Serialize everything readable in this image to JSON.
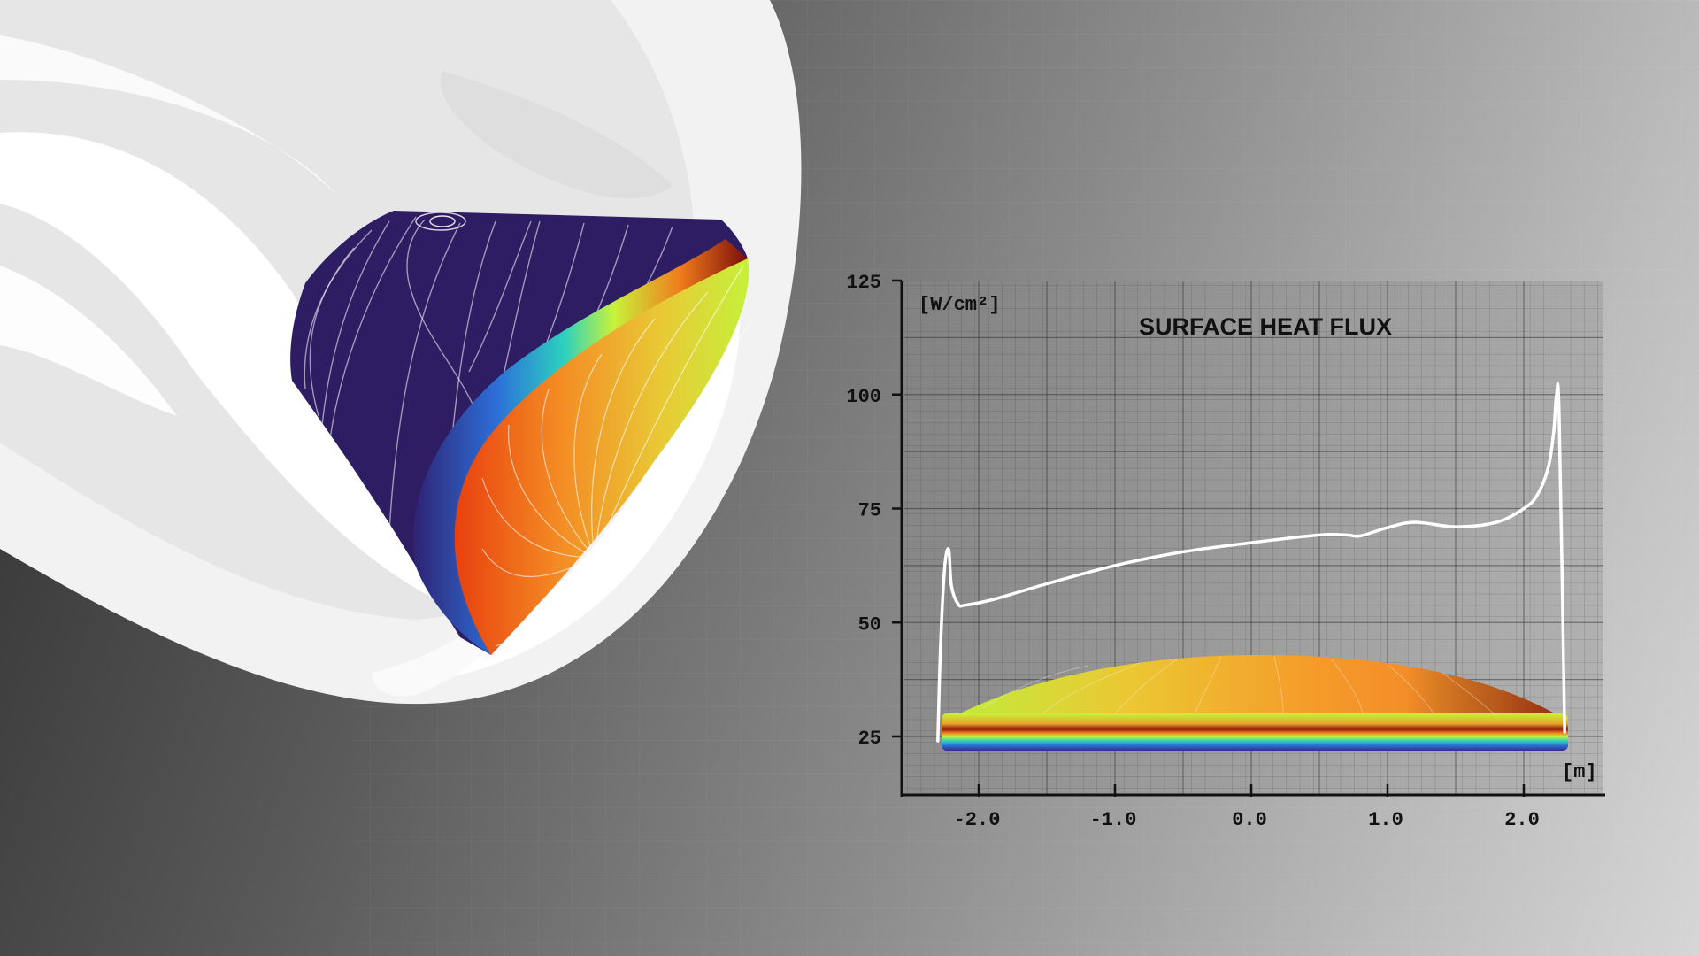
{
  "chart_data": {
    "type": "line",
    "title": "SURFACE HEAT FLUX",
    "xlabel": "[m]",
    "ylabel": "[W/cm²]",
    "xticks": [
      "-2.0",
      "-1.0",
      "0.0",
      "1.0",
      "2.0"
    ],
    "yticks": [
      "25",
      "50",
      "75",
      "100",
      "125"
    ],
    "xlim": [
      -2.6,
      2.6
    ],
    "ylim": [
      12,
      125
    ],
    "grid": true,
    "series": [
      {
        "x": [
          -2.3,
          -2.28,
          -2.25,
          -2.22,
          -2.2,
          -2.15,
          -2.1,
          -1.9,
          -1.5,
          -1.0,
          -0.5,
          0.0,
          0.5,
          0.7,
          0.8,
          1.0,
          1.2,
          1.5,
          1.8,
          2.0,
          2.1,
          2.18,
          2.22,
          2.24,
          2.26,
          2.3
        ],
        "y": [
          24,
          45,
          62,
          66,
          58,
          54,
          53.8,
          55,
          58.5,
          62.5,
          65.5,
          67.5,
          69.2,
          69.2,
          69,
          70.8,
          72,
          71,
          72,
          75,
          78,
          84,
          92,
          100,
          95,
          26
        ]
      }
    ]
  },
  "colors": {
    "curve": "#ffffff",
    "axis": "#111111",
    "grid": "#333333",
    "heat_low": "#2a1b5e",
    "heat_mid": "#c8f23a",
    "heat_high": "#f07a1c",
    "heat_peak": "#7a0d0a"
  }
}
